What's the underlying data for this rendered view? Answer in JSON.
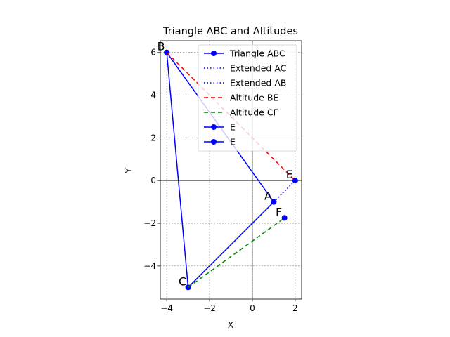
{
  "chart_data": {
    "type": "line",
    "title": "Triangle ABC and Altitudes",
    "xlabel": "X",
    "ylabel": "Y",
    "xlim": [
      -4.3,
      2.3
    ],
    "ylim": [
      -5.55,
      6.55
    ],
    "xticks": [
      -4,
      -2,
      0,
      2
    ],
    "yticks": [
      -4,
      -2,
      0,
      2,
      4,
      6
    ],
    "xtick_labels": [
      "−4",
      "−2",
      "0",
      "2"
    ],
    "ytick_labels": [
      "−4",
      "−2",
      "0",
      "2",
      "4",
      "6"
    ],
    "grid": true,
    "legend_position": "upper-right",
    "series": [
      {
        "name": "Triangle ABC",
        "style": "solid-markers",
        "color": "#0000ff",
        "x": [
          -4,
          1,
          -3,
          -4
        ],
        "y": [
          6,
          -1,
          -5,
          6
        ]
      },
      {
        "name": "Extended AC",
        "style": "dotted",
        "color": "#0000ff",
        "x": [
          1,
          2
        ],
        "y": [
          -1,
          0
        ]
      },
      {
        "name": "Extended AB",
        "style": "dotted",
        "color": "#0000ff",
        "x": [
          1,
          2
        ],
        "y": [
          -1,
          0
        ]
      },
      {
        "name": "Altitude BE",
        "style": "dashed",
        "color": "#ff0000",
        "x": [
          -4,
          2
        ],
        "y": [
          6,
          0
        ]
      },
      {
        "name": "Altitude CF",
        "style": "dashed",
        "color": "#008000",
        "x": [
          -3,
          1.5
        ],
        "y": [
          -5,
          -1.75
        ]
      },
      {
        "name": "E",
        "style": "solid-markers",
        "color": "#0000ff",
        "x": [
          2
        ],
        "y": [
          0
        ]
      },
      {
        "name": "E",
        "style": "solid-markers",
        "color": "#0000ff",
        "x": [
          1.5
        ],
        "y": [
          -1.75
        ]
      }
    ],
    "point_labels": [
      {
        "text": "A",
        "x": 1,
        "y": -1
      },
      {
        "text": "B",
        "x": -4,
        "y": 6
      },
      {
        "text": "C",
        "x": -3,
        "y": -5
      },
      {
        "text": "E",
        "x": 2,
        "y": 0
      },
      {
        "text": "F",
        "x": 1.5,
        "y": -1.75
      }
    ]
  }
}
